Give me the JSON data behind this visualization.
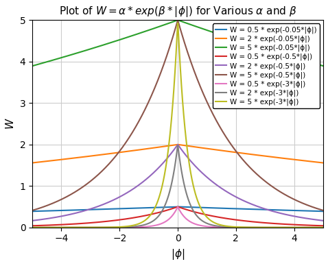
{
  "title": "Plot of $W = \\alpha * exp(\\beta * |\\phi|)$ for Various $\\alpha$ and $\\beta$",
  "xlabel": "$|\\phi|$",
  "ylabel": "$W$",
  "xlim": [
    -5,
    5
  ],
  "ylim": [
    0,
    5
  ],
  "curves": [
    {
      "alpha": 0.5,
      "beta": -0.05,
      "color": "#1f77b4",
      "label": "W = 0.5 * exp(-0.05*|ϕ|)"
    },
    {
      "alpha": 2.0,
      "beta": -0.05,
      "color": "#ff7f0e",
      "label": "W = 2 * exp(-0.05*|ϕ|)"
    },
    {
      "alpha": 5.0,
      "beta": -0.05,
      "color": "#2ca02c",
      "label": "W = 5 * exp(-0.05*|ϕ|)"
    },
    {
      "alpha": 0.5,
      "beta": -0.5,
      "color": "#d62728",
      "label": "W = 0.5 * exp(-0.5*|ϕ|)"
    },
    {
      "alpha": 2.0,
      "beta": -0.5,
      "color": "#9467bd",
      "label": "W = 2 * exp(-0.5*|ϕ|)"
    },
    {
      "alpha": 5.0,
      "beta": -0.5,
      "color": "#8c564b",
      "label": "W = 5 * exp(-0.5*|ϕ|)"
    },
    {
      "alpha": 0.5,
      "beta": -3.0,
      "color": "#e377c2",
      "label": "W = 0.5 * exp(-3*|ϕ|)"
    },
    {
      "alpha": 2.0,
      "beta": -3.0,
      "color": "#7f7f7f",
      "label": "W = 2 * exp(-3*|ϕ|)"
    },
    {
      "alpha": 5.0,
      "beta": -3.0,
      "color": "#bcbd22",
      "label": "W = 5 * exp(-3*|ϕ|)"
    }
  ],
  "grid_color": "#cccccc",
  "background_color": "#ffffff",
  "legend_fontsize": 7.5,
  "title_fontsize": 11,
  "axis_label_fontsize": 11
}
